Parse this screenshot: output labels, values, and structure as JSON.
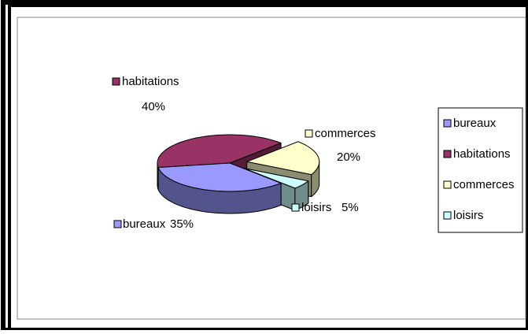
{
  "chart_data": {
    "type": "pie",
    "categories": [
      "bureaux",
      "habitations",
      "commerces",
      "loisirs"
    ],
    "values": [
      35,
      40,
      20,
      5
    ],
    "value_labels": [
      "35%",
      "40%",
      "20%",
      "5%"
    ],
    "colors": [
      "#9999ff",
      "#993366",
      "#ffffcc",
      "#ccffff"
    ],
    "legend": "right"
  }
}
